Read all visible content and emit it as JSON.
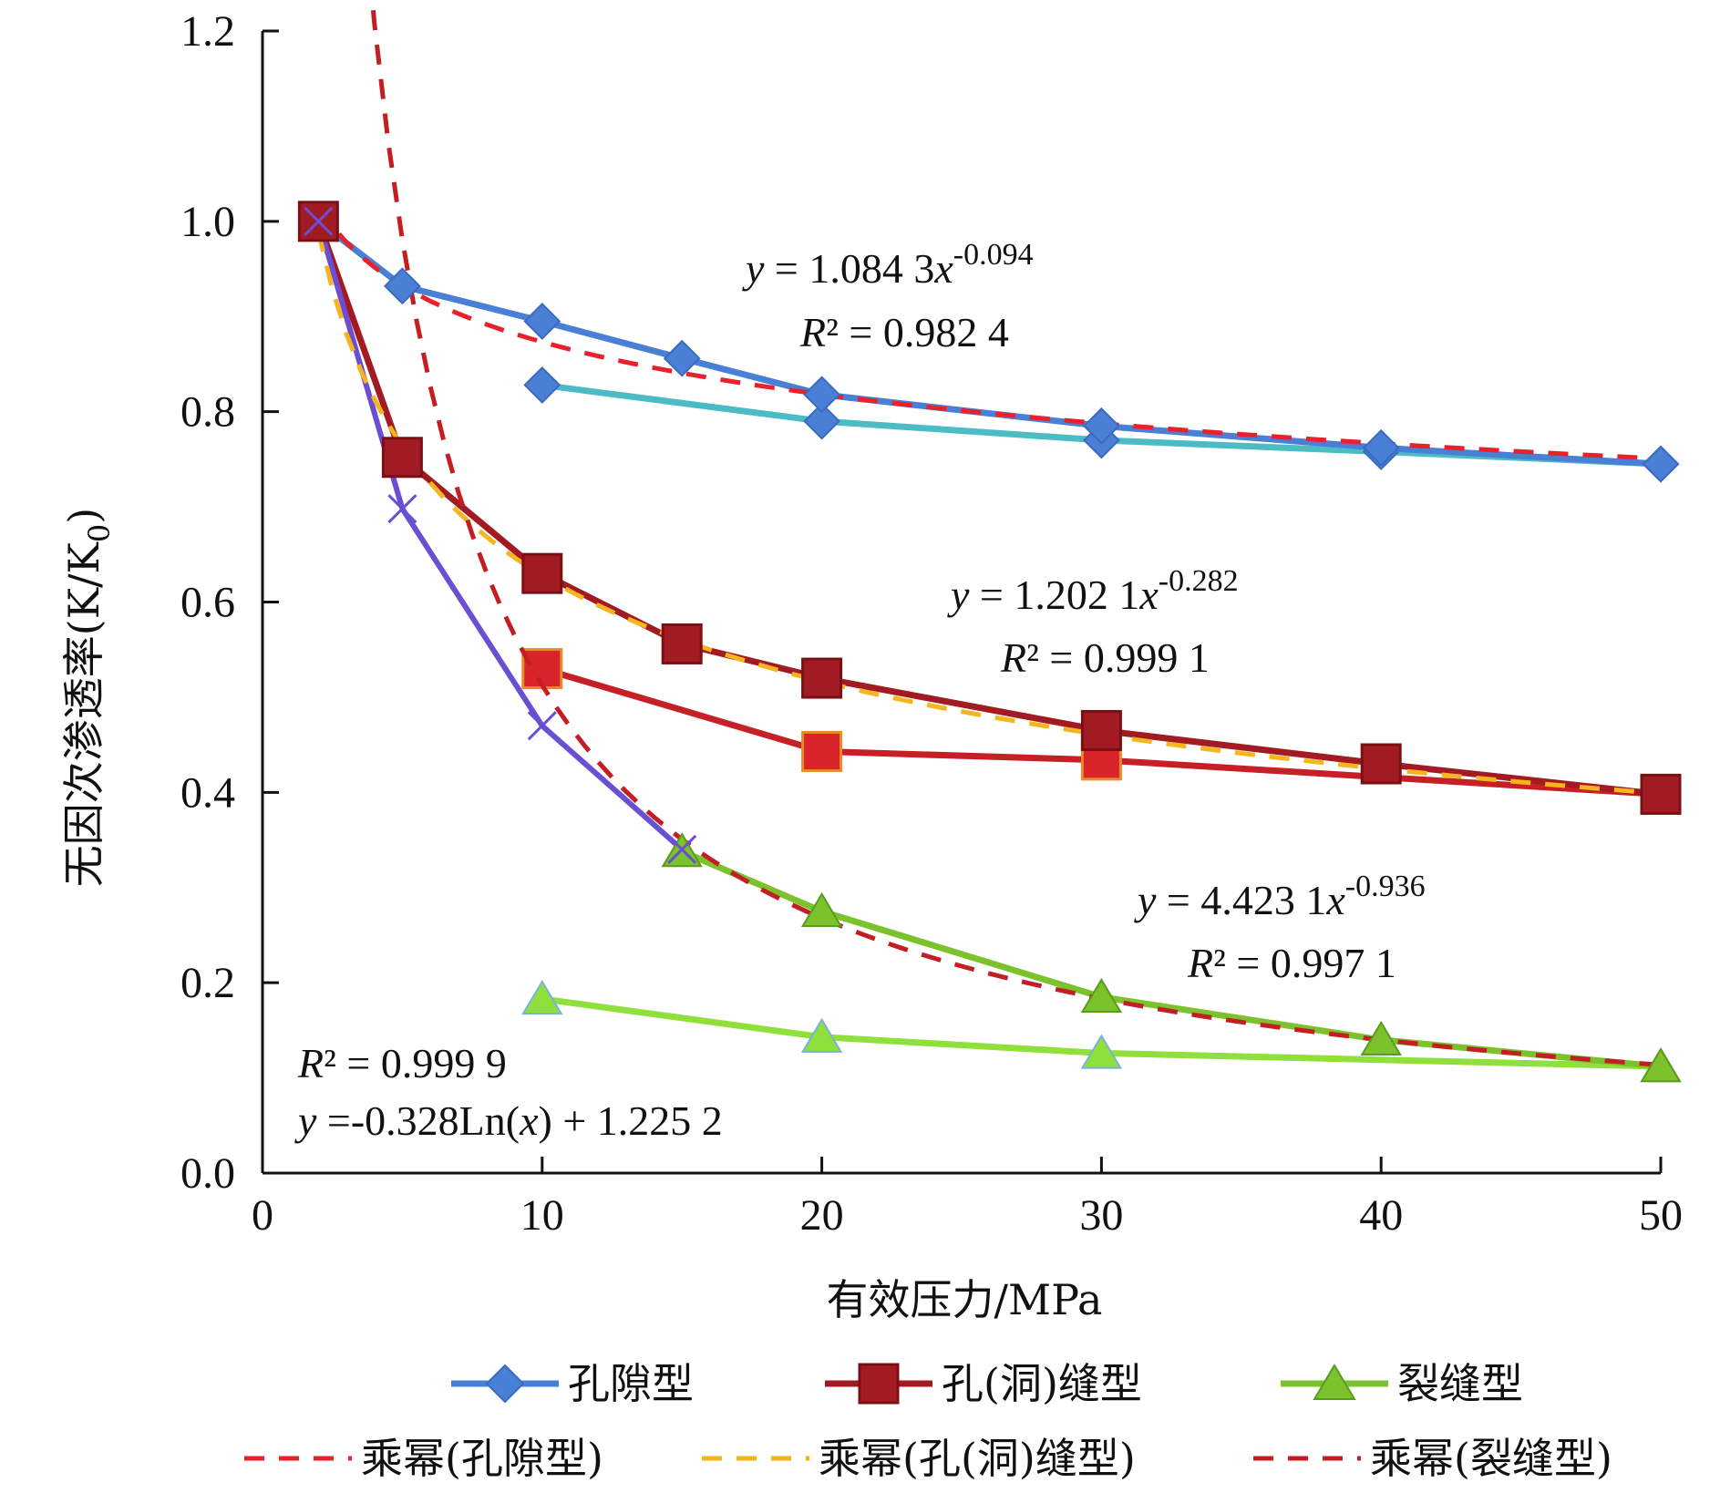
{
  "chart_data": {
    "type": "line",
    "xlabel": "有效压力/MPa",
    "ylabel": "无因次渗透率(K/K0)",
    "ylabel_main": "无因次渗透率(K/K",
    "ylabel_sub": "0",
    "ylabel_close": ")",
    "xlim": [
      0,
      50
    ],
    "ylim": [
      0,
      1.2
    ],
    "xticks": [
      0,
      10,
      20,
      30,
      40,
      50
    ],
    "yticks": [
      "0.0",
      "0.2",
      "0.4",
      "0.6",
      "0.8",
      "1.0",
      "1.2"
    ],
    "grid": false,
    "legend_position": "bottom",
    "colors": {
      "pore": "#4a7fd6",
      "pore_unload": "#4bbcc4",
      "vug": "#a31b22",
      "vug_unload": "#c61f25",
      "fracture": "#7cc22c",
      "fracture_unload": "#8fe03a",
      "fracture_log": "#6a4fd4",
      "fit_pore": "#e8212a",
      "fit_vug": "#f5b51e",
      "fit_fracture": "#c41e25"
    },
    "series": [
      {
        "name": "孔隙型",
        "kind": "data",
        "marker": "diamond",
        "x": [
          2,
          5,
          10,
          15,
          20,
          30,
          40,
          50
        ],
        "y": [
          1.0,
          0.932,
          0.895,
          0.856,
          0.818,
          0.785,
          0.762,
          0.745
        ]
      },
      {
        "name": "",
        "kind": "unload",
        "marker": "diamond",
        "x": [
          10,
          20,
          30,
          40,
          50
        ],
        "y": [
          0.828,
          0.79,
          0.77,
          0.758,
          0.745
        ]
      },
      {
        "name": "孔(洞)缝型",
        "kind": "data",
        "marker": "square",
        "x": [
          2,
          5,
          10,
          15,
          20,
          30,
          40,
          50
        ],
        "y": [
          1.0,
          0.752,
          0.63,
          0.556,
          0.52,
          0.465,
          0.43,
          0.398
        ]
      },
      {
        "name": "",
        "kind": "unload",
        "marker": "square",
        "x": [
          10,
          20,
          30,
          50
        ],
        "y": [
          0.53,
          0.443,
          0.434,
          0.398
        ]
      },
      {
        "name": "裂缝型",
        "kind": "data",
        "marker": "triangle",
        "x": [
          15,
          20,
          30,
          40,
          50
        ],
        "y": [
          0.338,
          0.275,
          0.185,
          0.14,
          0.112
        ]
      },
      {
        "name": "",
        "kind": "unload",
        "marker": "triangle",
        "x": [
          10,
          20,
          30,
          50
        ],
        "y": [
          0.183,
          0.143,
          0.126,
          0.112
        ]
      },
      {
        "name": "",
        "kind": "log",
        "marker": "x",
        "x": [
          2,
          5,
          10,
          15
        ],
        "y": [
          1.0,
          0.698,
          0.47,
          0.34
        ]
      },
      {
        "name": "乘幂(孔隙型)",
        "kind": "fit",
        "a": 1.0843,
        "b": -0.094,
        "x_range": [
          2,
          50
        ]
      },
      {
        "name": "乘幂(孔(洞)缝型)",
        "kind": "fit",
        "a": 1.2021,
        "b": -0.282,
        "x_range": [
          2,
          50
        ]
      },
      {
        "name": "乘幂(裂缝型)",
        "kind": "fit",
        "a": 4.4231,
        "b": -0.936,
        "x_range": [
          2,
          50
        ]
      }
    ],
    "annotations": [
      {
        "id": "pore",
        "eq_prefix": "y",
        "eq_mid": " = 1.084 3",
        "eq_var": "x",
        "eq_exp": "-0.094",
        "r2_var": "R",
        "r2_rest": "² = 0.982 4"
      },
      {
        "id": "vug",
        "eq_prefix": "y",
        "eq_mid": " = 1.202 1",
        "eq_var": "x",
        "eq_exp": "-0.282",
        "r2_var": "R",
        "r2_rest": "² = 0.999 1"
      },
      {
        "id": "fracture",
        "eq_prefix": "y",
        "eq_mid": " = 4.423 1",
        "eq_var": "x",
        "eq_exp": "-0.936",
        "r2_var": "R",
        "r2_rest": "² = 0.997 1"
      },
      {
        "id": "log",
        "r2_var": "R",
        "r2_rest": "² = 0.999 9",
        "eq_prefix": "y",
        "eq_rest": " =-0.328Ln(",
        "eq_var": "x",
        "eq_end": ") + 1.225 2"
      }
    ],
    "legend": [
      {
        "label": "孔隙型",
        "style": "data",
        "marker": "diamond"
      },
      {
        "label": "孔(洞)缝型",
        "style": "data",
        "marker": "square"
      },
      {
        "label": "裂缝型",
        "style": "data",
        "marker": "triangle"
      },
      {
        "label": "乘幂(孔隙型)",
        "style": "fit"
      },
      {
        "label": "乘幂(孔(洞)缝型)",
        "style": "fit"
      },
      {
        "label": "乘幂(裂缝型)",
        "style": "fit"
      }
    ]
  }
}
